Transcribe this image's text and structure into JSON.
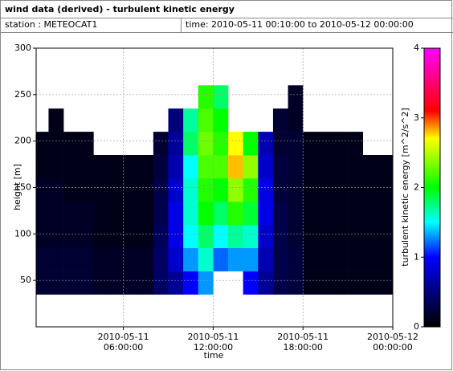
{
  "chart_data": {
    "type": "heatmap",
    "title": "wind data (derived) - turbulent kinetic energy",
    "station": "station : METEOCAT1",
    "time_range": "time: 2010-05-11 00:10:00 to 2010-05-12 00:00:00",
    "x_label": "time",
    "y_label": "height [m]",
    "colorbar_label": "turbulent kinetic energy [m^2/s^2]",
    "xlim": [
      0.17,
      24
    ],
    "ylim": [
      0,
      300
    ],
    "xticks": [
      {
        "value": 6,
        "label": "2010-05-11\n06:00:00"
      },
      {
        "value": 12,
        "label": "2010-05-11\n12:00:00"
      },
      {
        "value": 18,
        "label": "2010-05-11\n18:00:00"
      },
      {
        "value": 24,
        "label": "2010-05-12\n00:00:00"
      }
    ],
    "yticks": [
      50,
      100,
      150,
      200,
      250,
      300
    ],
    "grid": true,
    "clim": [
      0,
      4
    ],
    "cticks": [
      0,
      1,
      2,
      3,
      4
    ],
    "colormap": [
      [
        0,
        "#000000"
      ],
      [
        0.6,
        "#000096"
      ],
      [
        1.0,
        "#0000ff"
      ],
      [
        1.5,
        "#00ffff"
      ],
      [
        2.0,
        "#00ff00"
      ],
      [
        2.7,
        "#ffff00"
      ],
      [
        3.1,
        "#ff0000"
      ],
      [
        4,
        "#ff00ff"
      ]
    ],
    "x_edges": [
      0.17,
      1,
      2,
      3,
      4,
      5,
      6,
      7,
      8,
      9,
      10,
      11,
      12,
      13,
      14,
      15,
      16,
      17,
      18,
      19,
      20,
      21,
      22,
      23,
      24
    ],
    "y_edges": [
      35,
      60,
      85,
      110,
      135,
      160,
      185,
      210,
      235,
      260
    ],
    "z": [
      [
        0.2,
        0.2,
        0.15,
        0.15,
        0.15,
        0.1,
        0.1,
        null,
        null
      ],
      [
        0.2,
        0.2,
        0.15,
        0.15,
        0.15,
        0.1,
        0.1,
        0.1,
        null
      ],
      [
        0.2,
        0.2,
        0.15,
        0.15,
        0.1,
        0.1,
        0.1,
        null,
        null
      ],
      [
        0.2,
        0.2,
        0.15,
        0.15,
        0.1,
        0.1,
        0.1,
        null,
        null
      ],
      [
        0.15,
        0.15,
        0.1,
        0.1,
        0.1,
        0.1,
        null,
        null,
        null
      ],
      [
        0.15,
        0.15,
        0.1,
        0.1,
        0.1,
        0.1,
        null,
        null,
        null
      ],
      [
        0.15,
        0.15,
        0.1,
        0.1,
        0.1,
        0.1,
        null,
        null,
        null
      ],
      [
        0.15,
        0.15,
        0.1,
        0.1,
        0.1,
        0.1,
        null,
        null,
        null
      ],
      [
        0.4,
        0.4,
        0.35,
        0.3,
        0.3,
        0.25,
        0.2,
        null,
        null
      ],
      [
        0.6,
        0.8,
        0.9,
        0.9,
        0.8,
        0.7,
        0.6,
        0.5,
        null
      ],
      [
        1.0,
        1.3,
        1.5,
        1.6,
        1.6,
        1.5,
        1.8,
        1.7,
        null
      ],
      [
        1.3,
        1.6,
        1.8,
        2.0,
        2.1,
        2.2,
        2.3,
        2.2,
        2.1
      ],
      [
        null,
        1.2,
        1.5,
        1.8,
        2.0,
        2.2,
        2.1,
        2.0,
        1.8
      ],
      [
        null,
        1.3,
        1.7,
        2.1,
        2.4,
        2.8,
        2.7,
        null,
        null
      ],
      [
        1.0,
        1.3,
        1.6,
        1.9,
        2.1,
        2.4,
        2.0,
        null,
        null
      ],
      [
        0.6,
        0.7,
        0.8,
        0.9,
        0.9,
        0.8,
        0.7,
        null,
        null
      ],
      [
        0.3,
        0.3,
        0.3,
        0.3,
        0.25,
        0.25,
        0.2,
        0.2,
        null
      ],
      [
        0.25,
        0.25,
        0.2,
        0.2,
        0.2,
        0.2,
        0.2,
        0.15,
        0.15
      ],
      [
        0.1,
        0.1,
        0.1,
        0.1,
        0.1,
        0.1,
        0.1,
        null,
        null
      ],
      [
        0.1,
        0.1,
        0.1,
        0.1,
        0.1,
        0.1,
        0.1,
        null,
        null
      ],
      [
        0.1,
        0.1,
        0.1,
        0.1,
        0.1,
        0.1,
        0.1,
        null,
        null
      ],
      [
        0.1,
        0.1,
        0.1,
        0.1,
        0.1,
        0.1,
        0.1,
        null,
        null
      ],
      [
        0.1,
        0.1,
        0.1,
        0.1,
        0.1,
        0.1,
        null,
        null,
        null
      ],
      [
        0.1,
        0.1,
        0.1,
        0.1,
        0.1,
        0.1,
        null,
        null,
        null
      ]
    ]
  }
}
